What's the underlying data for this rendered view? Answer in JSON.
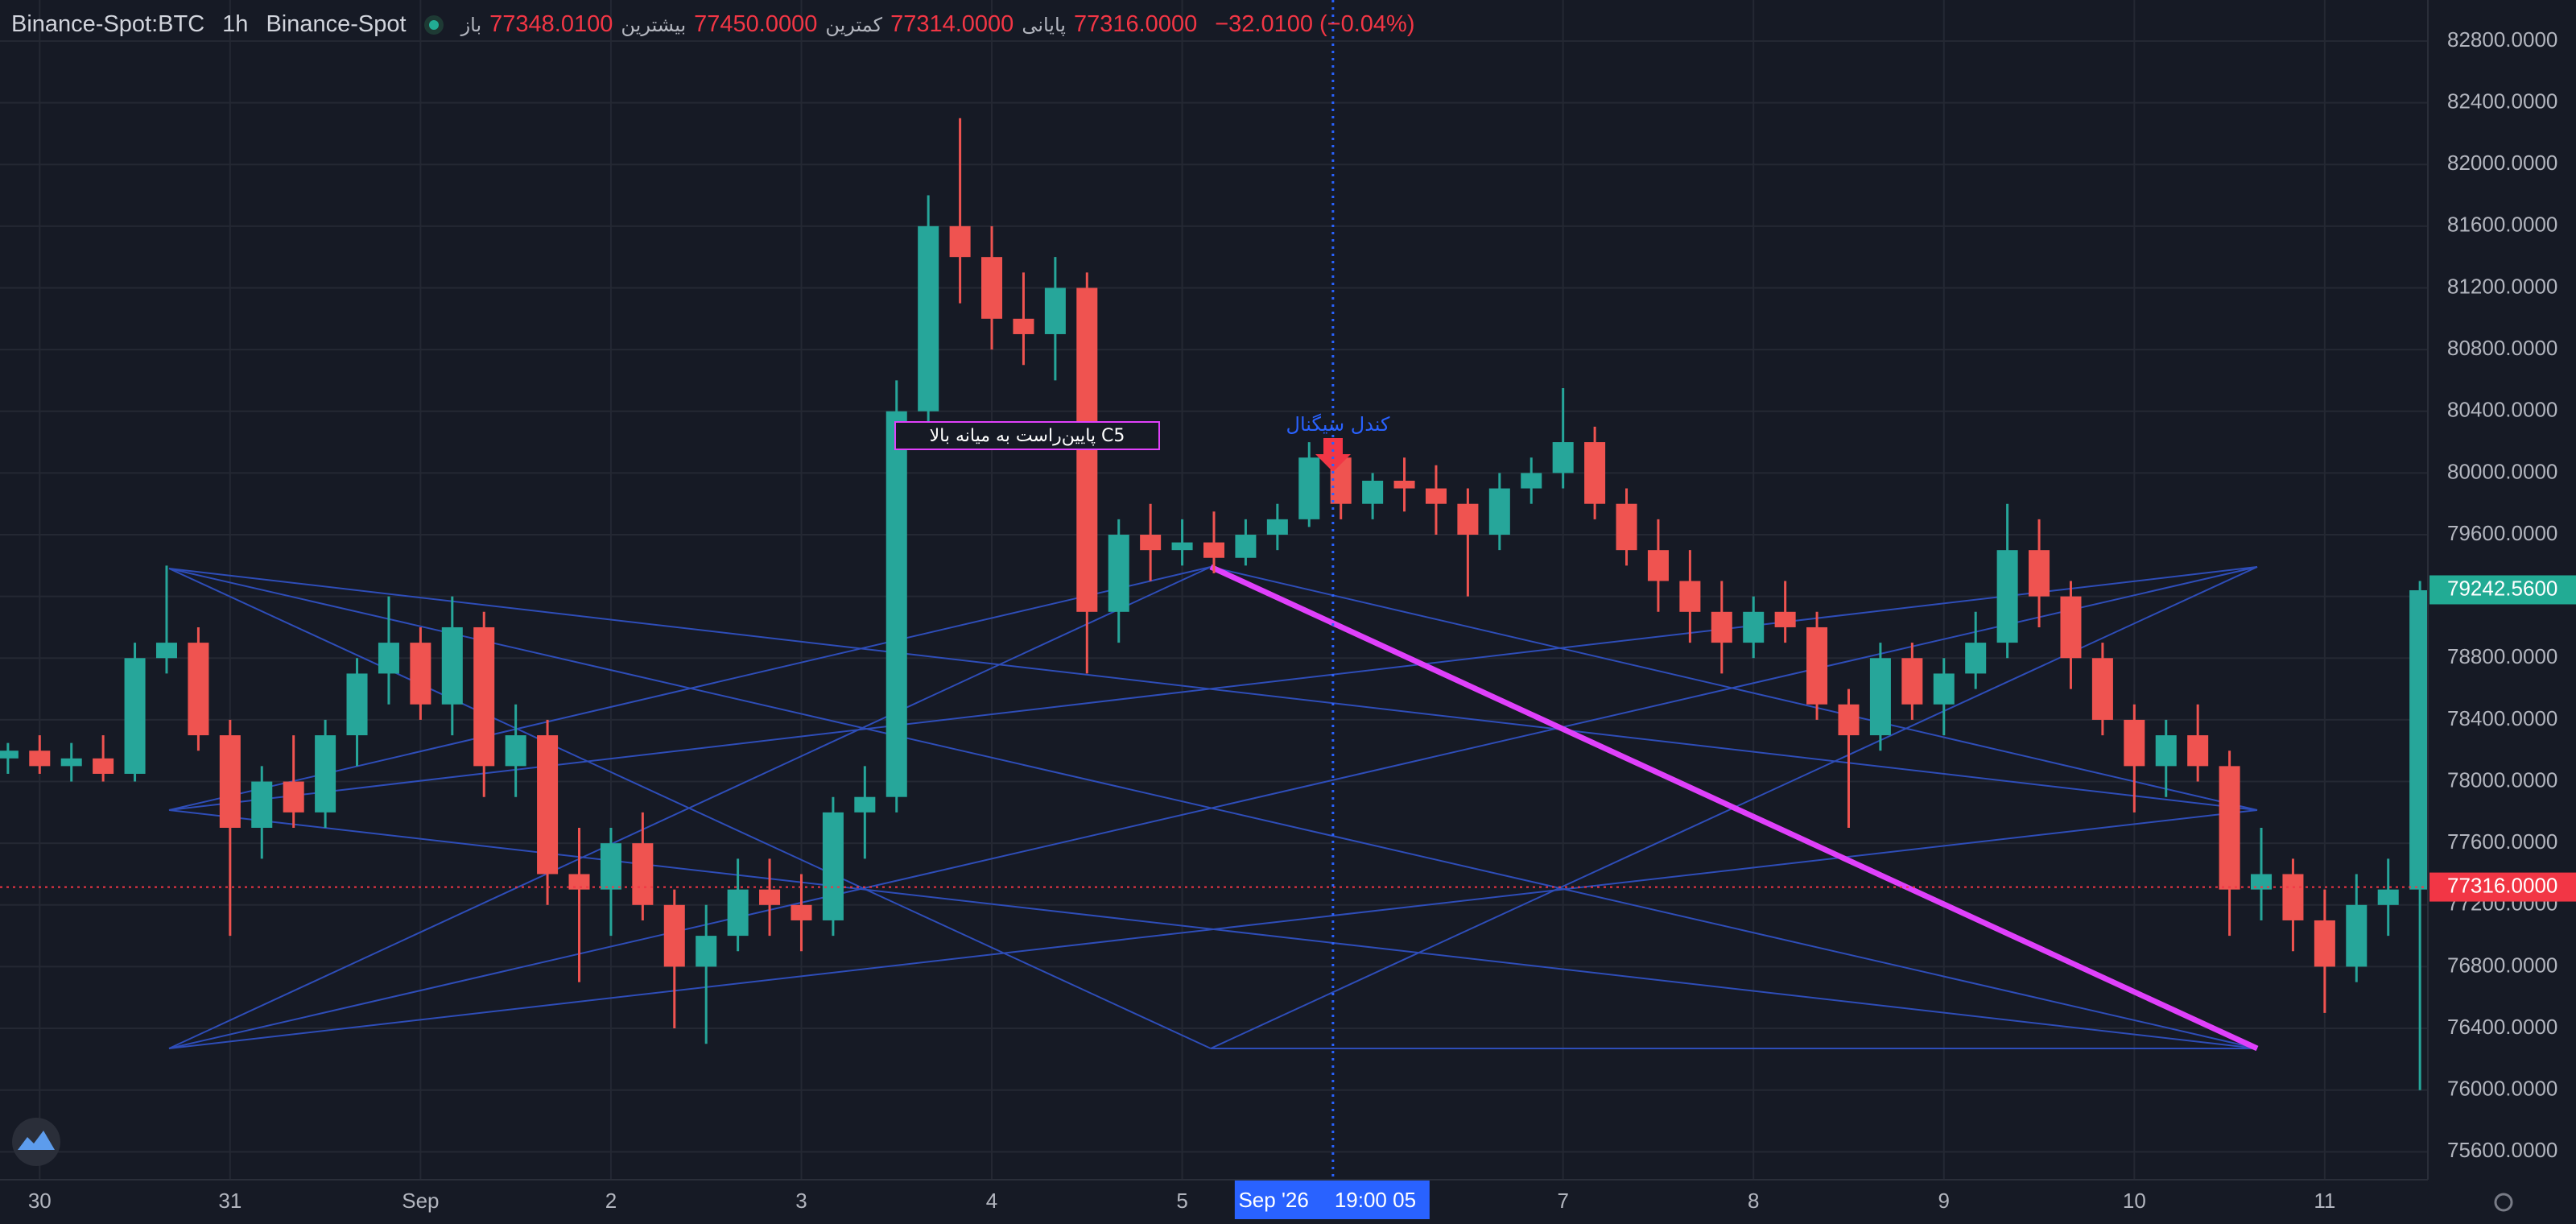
{
  "header": {
    "symbol": "Binance-Spot:BTC",
    "interval": "1h",
    "exchange": "Binance-Spot",
    "ohlc": [
      {
        "label": "باز",
        "value": "77348.0100"
      },
      {
        "label": "بیشترین",
        "value": "77450.0000"
      },
      {
        "label": "کمترین",
        "value": "77314.0000"
      },
      {
        "label": "پایانی",
        "value": "77316.0000"
      }
    ],
    "change": "−32.0100 (−0.04%)"
  },
  "chart_data": {
    "type": "candlestick",
    "up_color": "#26a69a",
    "down_color": "#ef5350",
    "xlim": [
      -5,
      301
    ],
    "ylim": [
      75419,
      83066
    ],
    "xticks": [
      {
        "value": 0,
        "label": "30"
      },
      {
        "value": 24,
        "label": "31"
      },
      {
        "value": 48,
        "label": "Sep"
      },
      {
        "value": 72,
        "label": "2"
      },
      {
        "value": 96,
        "label": "3"
      },
      {
        "value": 120,
        "label": "4"
      },
      {
        "value": 144,
        "label": "5"
      },
      {
        "value": 192,
        "label": "7"
      },
      {
        "value": 216,
        "label": "8"
      },
      {
        "value": 240,
        "label": "9"
      },
      {
        "value": 264,
        "label": "10"
      },
      {
        "value": 288,
        "label": "11"
      }
    ],
    "yticks": [
      {
        "value": 75600,
        "label": "75600.0000"
      },
      {
        "value": 76000,
        "label": "76000.0000"
      },
      {
        "value": 76400,
        "label": "76400.0000"
      },
      {
        "value": 76800,
        "label": "76800.0000"
      },
      {
        "value": 77200,
        "label": "77200.0000"
      },
      {
        "value": 77600,
        "label": "77600.0000"
      },
      {
        "value": 78000,
        "label": "78000.0000"
      },
      {
        "value": 78400,
        "label": "78400.0000"
      },
      {
        "value": 78800,
        "label": "78800.0000"
      },
      {
        "value": 79200,
        "label": "79200.0000"
      },
      {
        "value": 79600,
        "label": "79600.0000"
      },
      {
        "value": 80000,
        "label": "80000.0000"
      },
      {
        "value": 80400,
        "label": "80400.0000"
      },
      {
        "value": 80800,
        "label": "80800.0000"
      },
      {
        "value": 81200,
        "label": "81200.0000"
      },
      {
        "value": 81600,
        "label": "81600.0000"
      },
      {
        "value": 82000,
        "label": "82000.0000"
      },
      {
        "value": 82400,
        "label": "82400.0000"
      },
      {
        "value": 82800,
        "label": "82800.0000"
      }
    ],
    "grid": true,
    "x": [
      -4,
      0,
      4,
      8,
      12,
      16,
      20,
      24,
      28,
      32,
      36,
      40,
      44,
      48,
      52,
      56,
      60,
      64,
      68,
      72,
      76,
      80,
      84,
      88,
      92,
      96,
      100,
      104,
      108,
      112,
      116,
      120,
      124,
      128,
      132,
      136,
      140,
      144,
      148,
      152,
      156,
      160,
      164,
      168,
      172,
      176,
      180,
      184,
      188,
      192,
      196,
      200,
      204,
      208,
      212,
      216,
      220,
      224,
      228,
      232,
      236,
      240,
      244,
      248,
      252,
      256,
      260,
      264,
      268,
      272,
      276,
      280,
      284,
      288,
      292,
      296,
      300
    ],
    "ohlc": [
      [
        78150,
        78250,
        78050,
        78200
      ],
      [
        78200,
        78300,
        78050,
        78100
      ],
      [
        78100,
        78250,
        78000,
        78150
      ],
      [
        78150,
        78300,
        78000,
        78050
      ],
      [
        78050,
        78900,
        78000,
        78800
      ],
      [
        78800,
        79400,
        78700,
        78900
      ],
      [
        78900,
        79000,
        78200,
        78300
      ],
      [
        78300,
        78400,
        77000,
        77700
      ],
      [
        77700,
        78100,
        77500,
        78000
      ],
      [
        78000,
        78300,
        77700,
        77800
      ],
      [
        77800,
        78400,
        77700,
        78300
      ],
      [
        78300,
        78800,
        78100,
        78700
      ],
      [
        78700,
        79200,
        78500,
        78900
      ],
      [
        78900,
        79000,
        78400,
        78500
      ],
      [
        78500,
        79200,
        78300,
        79000
      ],
      [
        79000,
        79100,
        77900,
        78100
      ],
      [
        78100,
        78500,
        77900,
        78300
      ],
      [
        78300,
        78400,
        77200,
        77400
      ],
      [
        77400,
        77700,
        76700,
        77300
      ],
      [
        77300,
        77700,
        77000,
        77600
      ],
      [
        77600,
        77800,
        77100,
        77200
      ],
      [
        77200,
        77300,
        76400,
        76800
      ],
      [
        76800,
        77200,
        76300,
        77000
      ],
      [
        77000,
        77500,
        76900,
        77300
      ],
      [
        77300,
        77500,
        77000,
        77200
      ],
      [
        77200,
        77400,
        76900,
        77100
      ],
      [
        77100,
        77900,
        77000,
        77800
      ],
      [
        77800,
        78100,
        77500,
        77900
      ],
      [
        77900,
        80600,
        77800,
        80400
      ],
      [
        80400,
        81800,
        80200,
        81600
      ],
      [
        81600,
        82300,
        81100,
        81400
      ],
      [
        81400,
        81600,
        80800,
        81000
      ],
      [
        81000,
        81300,
        80700,
        80900
      ],
      [
        80900,
        81400,
        80600,
        81200
      ],
      [
        81200,
        81300,
        78700,
        79100
      ],
      [
        79100,
        79700,
        78900,
        79600
      ],
      [
        79600,
        79800,
        79300,
        79500
      ],
      [
        79500,
        79700,
        79400,
        79550
      ],
      [
        79550,
        79750,
        79350,
        79450
      ],
      [
        79450,
        79700,
        79400,
        79600
      ],
      [
        79600,
        79800,
        79500,
        79700
      ],
      [
        79700,
        80200,
        79650,
        80100
      ],
      [
        80100,
        80150,
        79700,
        79800
      ],
      [
        79800,
        80000,
        79700,
        79950
      ],
      [
        79950,
        80100,
        79750,
        79900
      ],
      [
        79900,
        80050,
        79600,
        79800
      ],
      [
        79800,
        79900,
        79200,
        79600
      ],
      [
        79600,
        80000,
        79500,
        79900
      ],
      [
        79900,
        80100,
        79800,
        80000
      ],
      [
        80000,
        80550,
        79900,
        80200
      ],
      [
        80200,
        80300,
        79700,
        79800
      ],
      [
        79800,
        79900,
        79400,
        79500
      ],
      [
        79500,
        79700,
        79100,
        79300
      ],
      [
        79300,
        79500,
        78900,
        79100
      ],
      [
        79100,
        79300,
        78700,
        78900
      ],
      [
        78900,
        79200,
        78800,
        79100
      ],
      [
        79100,
        79300,
        78900,
        79000
      ],
      [
        79000,
        79100,
        78400,
        78500
      ],
      [
        78500,
        78600,
        77700,
        78300
      ],
      [
        78300,
        78900,
        78200,
        78800
      ],
      [
        78800,
        78900,
        78400,
        78500
      ],
      [
        78500,
        78800,
        78300,
        78700
      ],
      [
        78700,
        79100,
        78600,
        78900
      ],
      [
        78900,
        79800,
        78800,
        79500
      ],
      [
        79500,
        79700,
        79000,
        79200
      ],
      [
        79200,
        79300,
        78600,
        78800
      ],
      [
        78800,
        78900,
        78300,
        78400
      ],
      [
        78400,
        78500,
        77800,
        78100
      ],
      [
        78100,
        78400,
        77900,
        78300
      ],
      [
        78300,
        78500,
        78000,
        78100
      ],
      [
        78100,
        78200,
        77000,
        77300
      ],
      [
        77300,
        77700,
        77100,
        77400
      ],
      [
        77400,
        77500,
        76900,
        77100
      ],
      [
        77100,
        77300,
        76500,
        76800
      ],
      [
        76800,
        77400,
        76700,
        77200
      ],
      [
        77200,
        77500,
        77000,
        77300
      ],
      [
        77300,
        79300,
        76000,
        79240
      ]
    ],
    "crosshair": {
      "x": 163,
      "date": "Sep '26",
      "time": "19:00 05"
    },
    "price_line": {
      "value": 77316,
      "label": "77316.0000"
    },
    "last_price": {
      "value": 79242.56,
      "label": "79242.5600"
    },
    "annotations": {
      "box": "پایین‌راست به میانه بالا C5",
      "signal": "کندل سیگنال"
    }
  }
}
